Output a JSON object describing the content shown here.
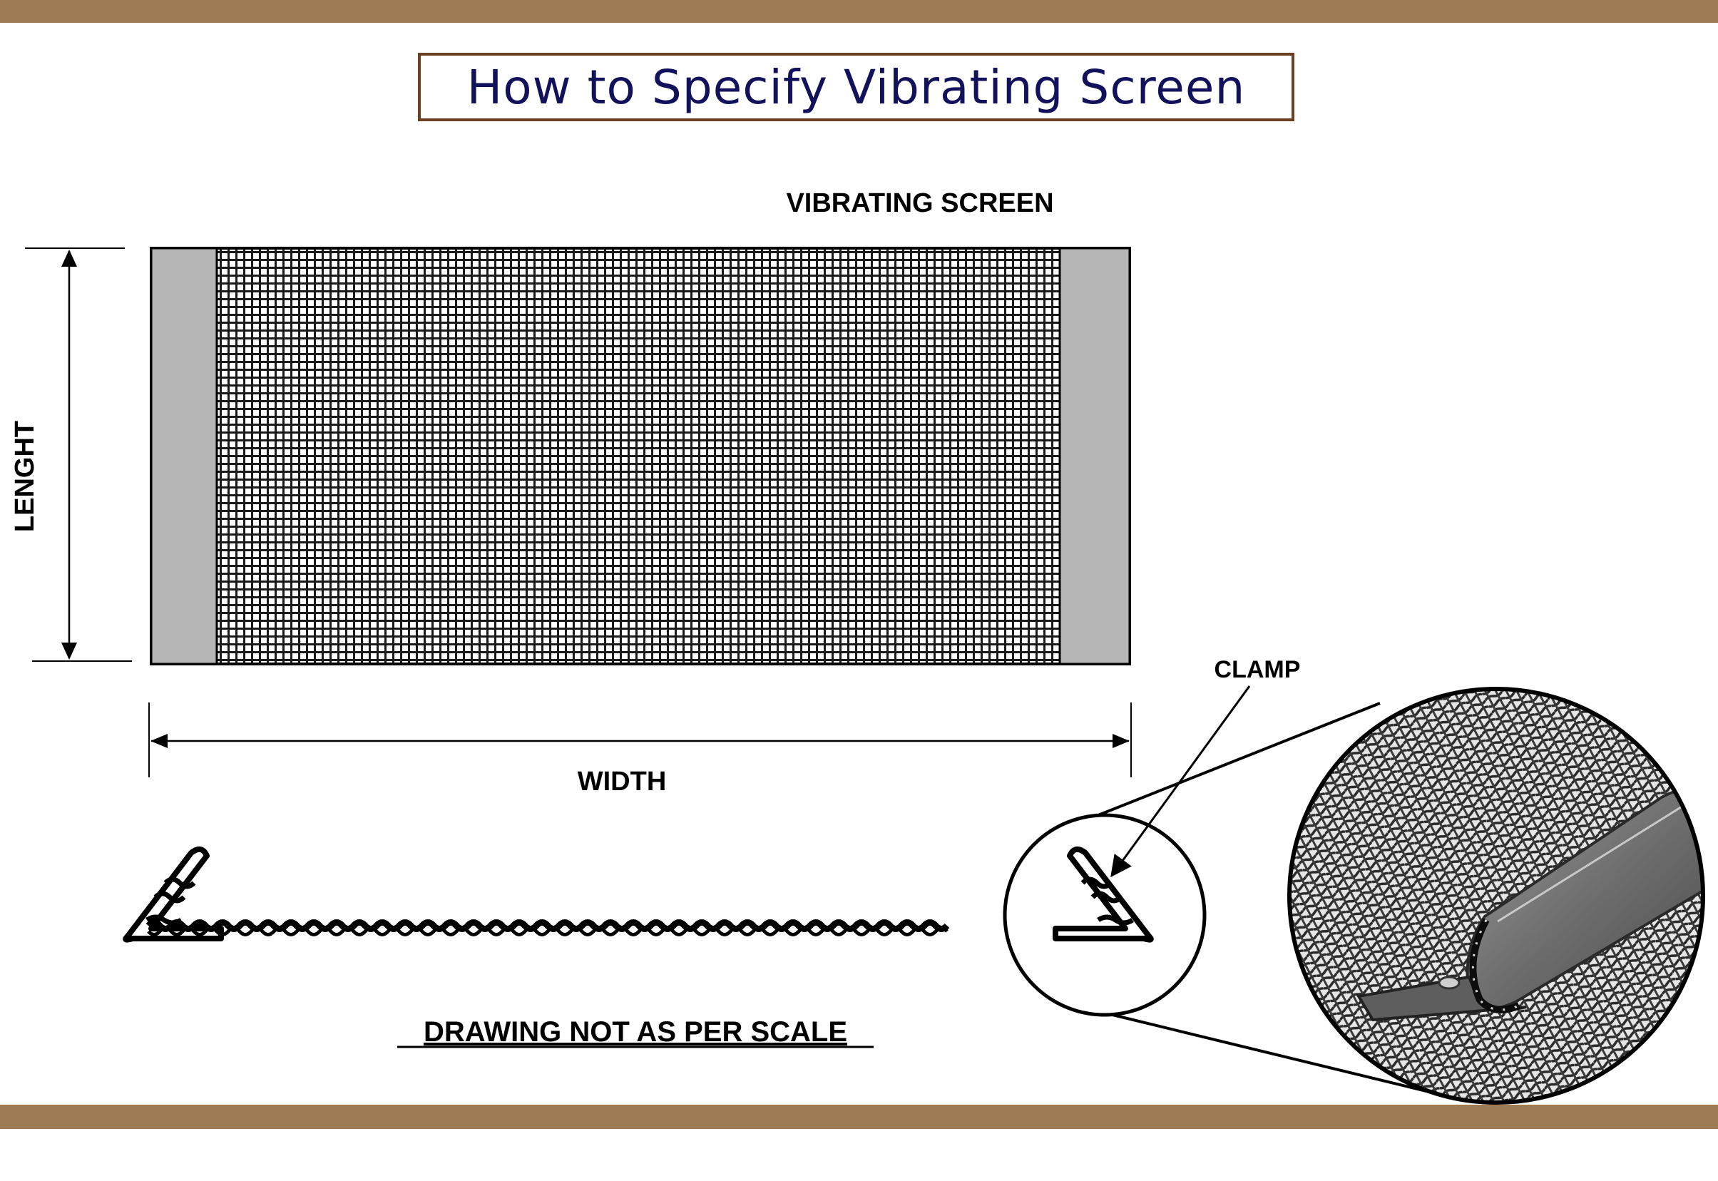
{
  "title": "How to Specify Vibrating Screen",
  "labels": {
    "vibrating_screen": "VIBRATING SCREEN",
    "length": "LENGHT",
    "width": "WIDTH",
    "clamp": "CLAMP",
    "note": "DRAWING NOT AS PER SCALE"
  },
  "colors": {
    "band": "#9e7b52",
    "title_border": "#6b3f1f",
    "title_text": "#12125c",
    "side_strip": "#b5b5b5",
    "mesh": "#1a1a1a",
    "ink": "#000000"
  },
  "icons": [
    "mesh-icon",
    "clamp-hook-icon",
    "arrow-icon",
    "magnifier-circle-icon"
  ]
}
